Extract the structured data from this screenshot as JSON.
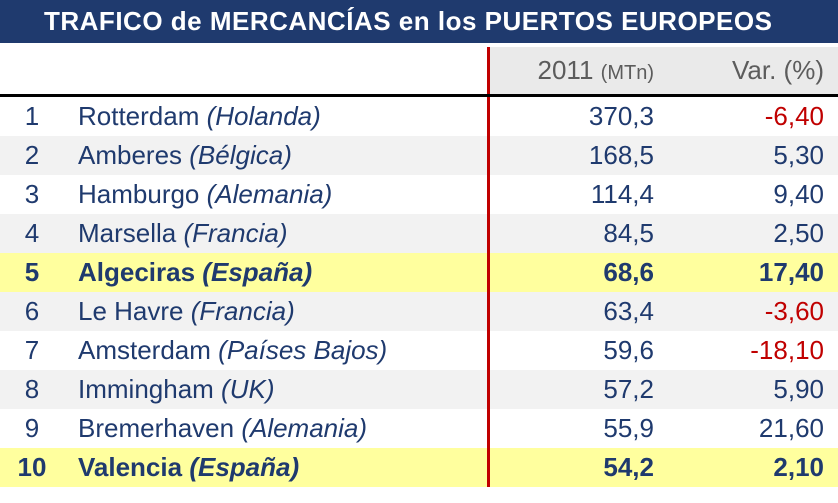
{
  "title": "TRAFICO de MERCANCÍAS en los PUERTOS EUROPEOS",
  "header": {
    "col_value": "2011",
    "col_value_unit": "(MTn)",
    "col_var": "Var. (%)"
  },
  "colors": {
    "title_bg": "#1f3a6e",
    "title_fg": "#ffffff",
    "header_bg": "#eaeaea",
    "header_fg": "#5c5c5c",
    "row_even_bg": "#f2f2f2",
    "row_odd_bg": "#ffffff",
    "highlight_bg": "#ffff9e",
    "text_main": "#1f3a6e",
    "negative": "#c00000",
    "divider_vertical": "#c00000",
    "header_underline": "#000000"
  },
  "columns": [
    "rank",
    "port",
    "country",
    "value_2011_MTn",
    "variation_pct"
  ],
  "rows": [
    {
      "rank": "1",
      "port": "Rotterdam",
      "country": "(Holanda)",
      "value": "370,3",
      "var": "-6,40",
      "neg": true,
      "highlight": false
    },
    {
      "rank": "2",
      "port": "Amberes",
      "country": "(Bélgica)",
      "value": "168,5",
      "var": "5,30",
      "neg": false,
      "highlight": false
    },
    {
      "rank": "3",
      "port": "Hamburgo",
      "country": "(Alemania)",
      "value": "114,4",
      "var": "9,40",
      "neg": false,
      "highlight": false
    },
    {
      "rank": "4",
      "port": "Marsella",
      "country": "(Francia)",
      "value": "84,5",
      "var": "2,50",
      "neg": false,
      "highlight": false
    },
    {
      "rank": "5",
      "port": "Algeciras",
      "country": "(España)",
      "value": "68,6",
      "var": "17,40",
      "neg": false,
      "highlight": true
    },
    {
      "rank": "6",
      "port": "Le Havre",
      "country": "(Francia)",
      "value": "63,4",
      "var": "-3,60",
      "neg": true,
      "highlight": false
    },
    {
      "rank": "7",
      "port": "Amsterdam",
      "country": "(Países Bajos)",
      "value": "59,6",
      "var": "-18,10",
      "neg": true,
      "highlight": false
    },
    {
      "rank": "8",
      "port": "Immingham",
      "country": "(UK)",
      "value": "57,2",
      "var": "5,90",
      "neg": false,
      "highlight": false
    },
    {
      "rank": "9",
      "port": "Bremerhaven",
      "country": "(Alemania)",
      "value": "55,9",
      "var": "21,60",
      "neg": false,
      "highlight": false
    },
    {
      "rank": "10",
      "port": "Valencia",
      "country": "(España)",
      "value": "54,2",
      "var": "2,10",
      "neg": false,
      "highlight": true
    }
  ]
}
